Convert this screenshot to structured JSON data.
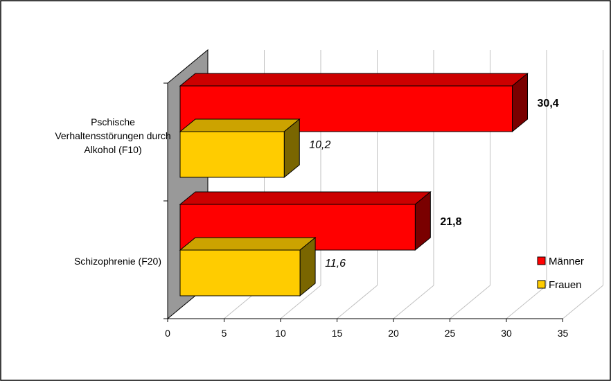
{
  "chart_data": {
    "type": "bar",
    "orientation": "horizontal",
    "three_d": true,
    "categories": [
      "Pschische Verhaltensstörungen durch Alkohol (F10)",
      "Schizophrenie (F20)"
    ],
    "category_lines": [
      [
        "Pschische",
        "Verhaltensstörungen durch",
        "Alkohol (F10)"
      ],
      [
        "Schizophrenie (F20)"
      ]
    ],
    "series": [
      {
        "name": "Männer",
        "values": [
          30.4,
          21.8
        ],
        "labels": [
          "30,4",
          "21,8"
        ],
        "color": "#ff0000",
        "label_style": "bold"
      },
      {
        "name": "Frauen",
        "values": [
          10.2,
          11.6
        ],
        "labels": [
          "10,2",
          "11,6"
        ],
        "color": "#ffcc00",
        "label_style": "italic"
      }
    ],
    "xlim": [
      0,
      35
    ],
    "xticks": [
      0,
      5,
      10,
      15,
      20,
      25,
      30,
      35
    ],
    "xtick_labels": [
      "0",
      "5",
      "10",
      "15",
      "20",
      "25",
      "30",
      "35"
    ],
    "grid": true,
    "legend_position": "right",
    "title": "",
    "xlabel": "",
    "ylabel": ""
  }
}
